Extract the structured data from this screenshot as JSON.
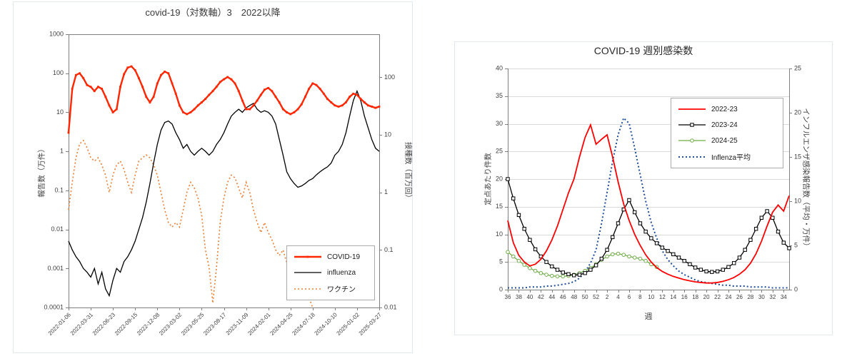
{
  "page": {
    "background": "#ffffff"
  },
  "chart_data": [
    {
      "type": "line",
      "title": "covid-19（対数軸）3　2022以降",
      "x_unit": "weeks since 2022-01-06",
      "xlim": [
        0,
        168
      ],
      "x_step": 2,
      "x_tick_positions": [
        0,
        12,
        24,
        36,
        48,
        60,
        72,
        84,
        96,
        108,
        120,
        132,
        144,
        156,
        168
      ],
      "x_tick_labels": [
        "2022-01-06",
        "2022-03-31",
        "2022-06-23",
        "2022-09-15",
        "2022-12-08",
        "2023-03-02",
        "2023-05-25",
        "2023-08-17",
        "2023-11-09",
        "2024-02-01",
        "2024-04-25",
        "2024-07-18",
        "2024-10-10",
        "2025-01-02",
        "2025-03-27"
      ],
      "grid": false,
      "box": true,
      "axis_color": "#7f7f7f",
      "text_color": "#404040",
      "y_left": {
        "title": "報告数（万件）",
        "scale": "log",
        "lim": [
          0.0001,
          1000
        ],
        "tick_values": [
          1000,
          100,
          10,
          1,
          0.1,
          0.01,
          0.001,
          0.0001
        ],
        "tick_labels": [
          "1000",
          "100",
          "10",
          "1",
          "0.1",
          "0.01",
          "0.001",
          "0.0001"
        ]
      },
      "y_right": {
        "title": "接種数（百万回）",
        "scale": "log",
        "lim": [
          0.01,
          562
        ],
        "tick_values": [
          100,
          10,
          1,
          0.1,
          0.01
        ],
        "tick_labels": [
          "100",
          "10",
          "1",
          "0.1",
          "0.01"
        ]
      },
      "legend_position": "inside-bottom-right",
      "series": [
        {
          "name": "COVID-19",
          "axis": "left",
          "color": "#ff2600",
          "width": 2.4,
          "dash": [],
          "marker": "dot",
          "values": [
            3,
            40,
            90,
            100,
            75,
            50,
            45,
            35,
            45,
            40,
            25,
            15,
            10,
            12,
            45,
            95,
            140,
            150,
            120,
            75,
            45,
            25,
            18,
            25,
            55,
            90,
            110,
            100,
            55,
            30,
            15,
            10,
            9,
            10,
            12,
            15,
            18,
            22,
            28,
            35,
            45,
            60,
            70,
            80,
            70,
            55,
            35,
            20,
            12,
            12,
            15,
            20,
            28,
            38,
            42,
            35,
            25,
            18,
            12,
            10,
            9,
            10,
            12,
            16,
            25,
            40,
            55,
            50,
            40,
            30,
            22,
            18,
            15,
            14,
            15,
            18,
            25,
            30,
            28,
            22,
            18,
            15,
            14,
            13,
            14
          ]
        },
        {
          "name": "influenza",
          "axis": "left",
          "color": "#000000",
          "width": 1.3,
          "dash": [],
          "marker": "none",
          "values": [
            0.005,
            0.003,
            0.002,
            0.0015,
            0.001,
            0.0008,
            0.0006,
            0.001,
            0.0004,
            0.0008,
            0.0003,
            0.0002,
            0.0005,
            0.001,
            0.0008,
            0.0015,
            0.002,
            0.003,
            0.005,
            0.01,
            0.02,
            0.05,
            0.15,
            0.5,
            1.5,
            3.5,
            5.5,
            6,
            5,
            3,
            2,
            1.2,
            1.5,
            1,
            0.8,
            1,
            1.2,
            1,
            0.8,
            1,
            1.5,
            2,
            3,
            5,
            8,
            10,
            12,
            10,
            13,
            15,
            17,
            12,
            10,
            11,
            10,
            8,
            5,
            2,
            0.8,
            0.3,
            0.2,
            0.15,
            0.12,
            0.13,
            0.15,
            0.18,
            0.2,
            0.25,
            0.3,
            0.35,
            0.4,
            0.5,
            0.8,
            1,
            1.5,
            3,
            8,
            20,
            35,
            20,
            8,
            4,
            2,
            1.2,
            1
          ]
        },
        {
          "name": "ワクチン",
          "axis": "right",
          "color": "#ed7d31",
          "width": 1.6,
          "dash": [
            2,
            3
          ],
          "marker": "none",
          "values": [
            0.5,
            1.5,
            4,
            7,
            8,
            6,
            4,
            3.5,
            4,
            3,
            2,
            1,
            2,
            3,
            3.5,
            2.5,
            1.5,
            1,
            2,
            3.5,
            4,
            4.5,
            4,
            3,
            2,
            1,
            0.5,
            0.3,
            0.25,
            0.3,
            0.25,
            0.5,
            1,
            1.5,
            1.2,
            0.8,
            0.4,
            0.1,
            0.05,
            0.012,
            0.05,
            0.3,
            0.8,
            1.5,
            2,
            1.8,
            1.2,
            0.8,
            1.5,
            1,
            0.5,
            0.3,
            0.2,
            0.3,
            0.2,
            0.15,
            0.1,
            0.08,
            0.1,
            0.06,
            0.04,
            0.03,
            0.02,
            0.015,
            0.02,
            0.015,
            0.01
          ]
        }
      ]
    },
    {
      "type": "line",
      "title": "COVID-19 週別感染数",
      "x_title": "週",
      "xlim": [
        0,
        51
      ],
      "x_step": 1,
      "x_tick_positions": [
        0,
        2,
        4,
        6,
        8,
        10,
        12,
        14,
        16,
        18,
        20,
        22,
        24,
        26,
        28,
        30,
        32,
        34,
        36,
        38,
        40,
        42,
        44,
        46,
        48,
        50
      ],
      "x_tick_labels": [
        "36",
        "38",
        "40",
        "42",
        "44",
        "46",
        "48",
        "50",
        "52",
        "2",
        "4",
        "6",
        "8",
        "10",
        "12",
        "14",
        "16",
        "18",
        "20",
        "22",
        "24",
        "26",
        "28",
        "30",
        "32",
        "34"
      ],
      "grid": true,
      "box": false,
      "grid_color": "#d9d9d9",
      "axis_color": "#7f7f7f",
      "text_color": "#404040",
      "y_left": {
        "title": "定点あたり件数",
        "scale": "linear",
        "lim": [
          0,
          40
        ],
        "tick_values": [
          0,
          5,
          10,
          15,
          20,
          25,
          30,
          35,
          40
        ],
        "tick_labels": [
          "0",
          "5",
          "10",
          "15",
          "20",
          "25",
          "30",
          "35",
          "40"
        ]
      },
      "y_right": {
        "title": "インフルエンザ感染報告数（平均・万件）",
        "scale": "linear",
        "lim": [
          0,
          25
        ],
        "tick_values": [
          0,
          5,
          10,
          15,
          20,
          25
        ],
        "tick_labels": [
          "0",
          "5",
          "10",
          "15",
          "20",
          "25"
        ]
      },
      "legend_position": "inside-top-right",
      "series": [
        {
          "name": "2022-23",
          "axis": "left",
          "color": "#ff0000",
          "width": 1.8,
          "dash": [],
          "marker": "none",
          "values": [
            12.5,
            8.5,
            6.2,
            5,
            4.3,
            4.6,
            5.5,
            7,
            9,
            11.5,
            14.5,
            17.5,
            20,
            24,
            27.5,
            29.8,
            26.3,
            27.2,
            28,
            24,
            19.5,
            15.5,
            12.5,
            10,
            8,
            6.3,
            5,
            4,
            3.3,
            2.8,
            2.4,
            2.1,
            1.8,
            1.6,
            1.4,
            1.3,
            1.2,
            1.2,
            1.3,
            1.5,
            1.8,
            2.2,
            2.8,
            3.6,
            4.8,
            6.5,
            8.8,
            11.5,
            14,
            15.3,
            14.2,
            17
          ]
        },
        {
          "name": "2023-24",
          "axis": "left",
          "color": "#000000",
          "width": 1.3,
          "dash": [],
          "marker": "square-open",
          "values": [
            20,
            16.5,
            13.5,
            11,
            9,
            7.3,
            6,
            5,
            4.2,
            3.6,
            3.1,
            2.8,
            2.6,
            2.7,
            3,
            3.6,
            4.4,
            5.6,
            7.2,
            9.5,
            12,
            14.5,
            16.2,
            14,
            12,
            10.5,
            9.3,
            8.4,
            7.6,
            7,
            6.4,
            5.8,
            5.2,
            4.6,
            4,
            3.6,
            3.3,
            3.2,
            3.3,
            3.6,
            4.1,
            4.8,
            5.8,
            7.2,
            9,
            11,
            13,
            14.2,
            13,
            10.5,
            8.5,
            7.5
          ]
        },
        {
          "name": "2024-25",
          "axis": "left",
          "color": "#70ad47",
          "width": 1.3,
          "dash": [],
          "marker": "circle-open",
          "values": [
            6.8,
            6,
            5.2,
            4.5,
            3.9,
            3.4,
            3,
            2.7,
            2.5,
            2.4,
            2.4,
            2.5,
            2.7,
            3,
            3.4,
            3.9,
            4.6,
            5.4,
            6,
            6.4,
            6.5,
            6.3,
            6,
            5.8,
            5.6,
            5.2,
            4.6,
            4.1
          ]
        },
        {
          "name": "Inflenza平均",
          "axis": "right",
          "color": "#1f4e9c",
          "width": 2,
          "dash": [
            2,
            3
          ],
          "marker": "none",
          "values": [
            0.2,
            0.2,
            0.2,
            0.2,
            0.3,
            0.3,
            0.3,
            0.4,
            0.4,
            0.5,
            0.6,
            0.7,
            0.9,
            1.3,
            2,
            3,
            4.5,
            7.5,
            11,
            14.5,
            17.5,
            19.4,
            18.8,
            16,
            13,
            10,
            7.6,
            5.8,
            4.4,
            3.4,
            2.7,
            2.1,
            1.7,
            1.4,
            1.1,
            0.9,
            0.8,
            0.7,
            0.6,
            0.5,
            0.5,
            0.4,
            0.4,
            0.4,
            0.3,
            0.3,
            0.3,
            0.3,
            0.2,
            0.2,
            0.2,
            0.2
          ]
        }
      ]
    }
  ]
}
